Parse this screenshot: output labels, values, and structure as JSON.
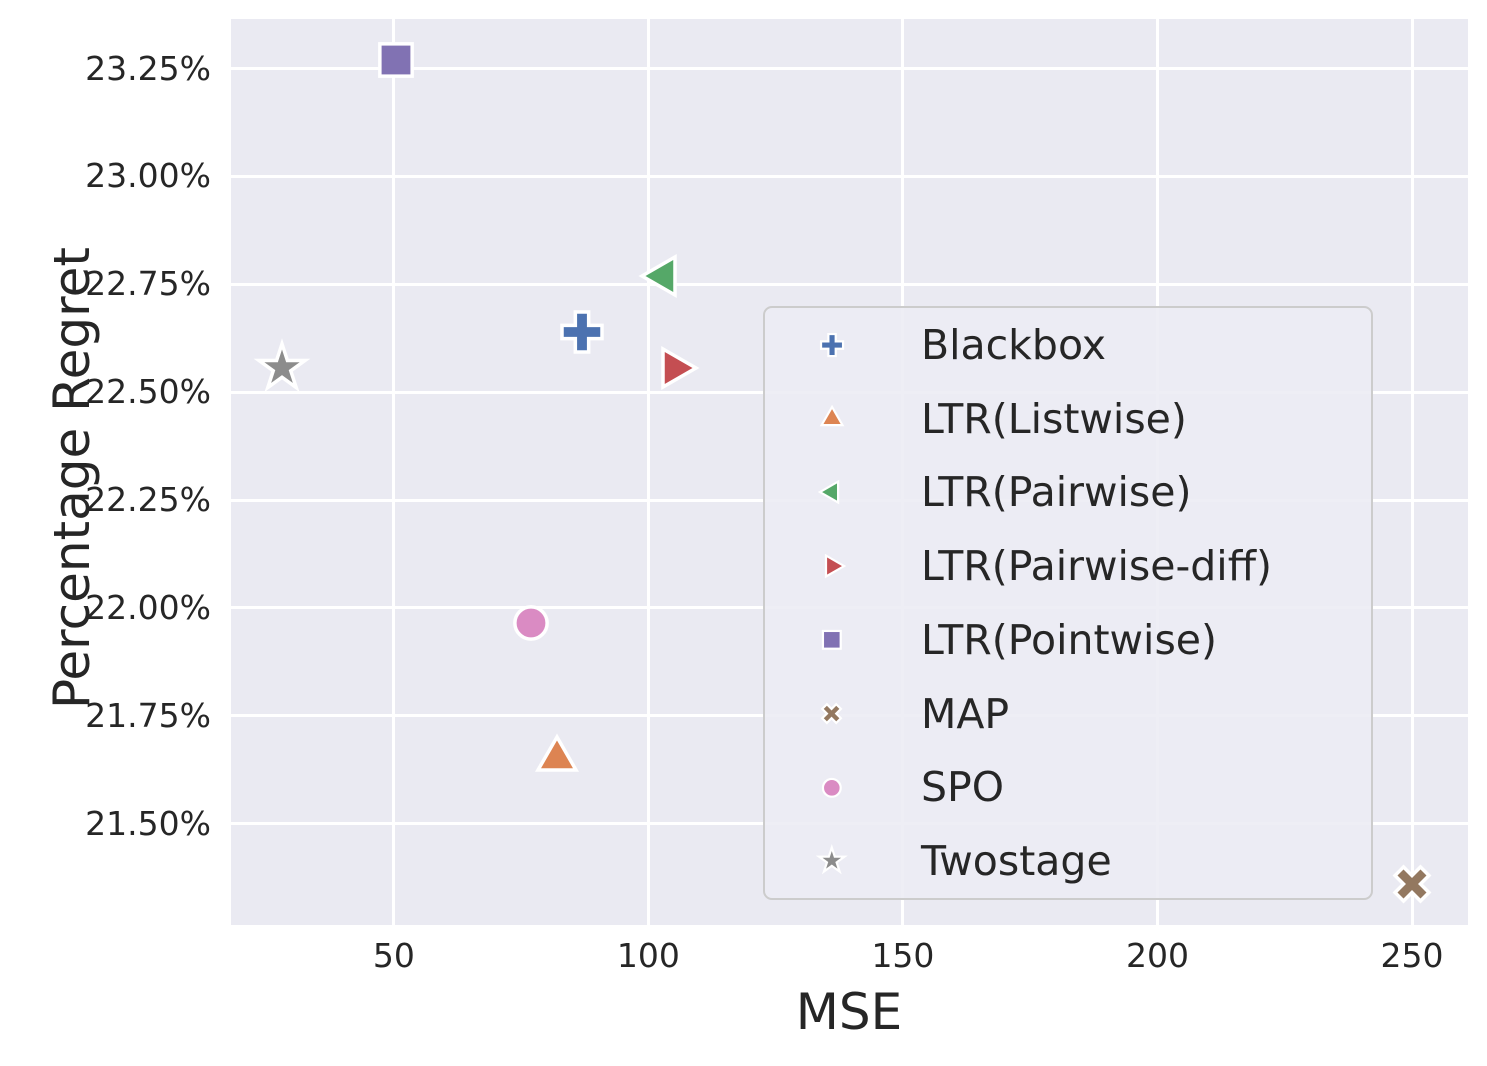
{
  "chart_data": {
    "type": "scatter",
    "title": "",
    "xlabel": "MSE",
    "ylabel": "Percentage Regret",
    "grid": true,
    "background_color": "#EAEAF2",
    "gridline_color": "#FFFFFF",
    "text_color": "#262626",
    "xlim": [
      18,
      261
    ],
    "ylim": [
      21.265,
      23.365
    ],
    "x_ticks": [
      50,
      100,
      150,
      200,
      250
    ],
    "x_tick_labels": [
      "50",
      "100",
      "150",
      "200",
      "250"
    ],
    "y_ticks": [
      21.5,
      21.75,
      22.0,
      22.25,
      22.5,
      22.75,
      23.0,
      23.25
    ],
    "y_tick_labels": [
      "21.50%",
      "21.75%",
      "22.00%",
      "22.25%",
      "22.50%",
      "22.75%",
      "23.00%",
      "23.25%"
    ],
    "legend_position": "center-right",
    "series": [
      {
        "name": "Blackbox",
        "marker": "plus",
        "color": "#4C72B0",
        "points": [
          {
            "x": 87,
            "y": 22.64
          }
        ]
      },
      {
        "name": "LTR(Listwise)",
        "marker": "triangle-up",
        "color": "#DD8452",
        "points": [
          {
            "x": 82,
            "y": 21.65
          }
        ]
      },
      {
        "name": "LTR(Pairwise)",
        "marker": "triangle-left",
        "color": "#55A868",
        "points": [
          {
            "x": 103,
            "y": 22.77
          }
        ]
      },
      {
        "name": "LTR(Pairwise-diff)",
        "marker": "triangle-right",
        "color": "#C44E52",
        "points": [
          {
            "x": 105,
            "y": 22.555
          }
        ]
      },
      {
        "name": "LTR(Pointwise)",
        "marker": "square",
        "color": "#8172B3",
        "points": [
          {
            "x": 50.5,
            "y": 23.27
          }
        ]
      },
      {
        "name": "MAP",
        "marker": "x",
        "color": "#937860",
        "points": [
          {
            "x": 250,
            "y": 21.36
          }
        ]
      },
      {
        "name": "SPO",
        "marker": "circle",
        "color": "#DA8BC3",
        "points": [
          {
            "x": 77,
            "y": 21.965
          }
        ]
      },
      {
        "name": "Twostage",
        "marker": "star",
        "color": "#8C8C8C",
        "points": [
          {
            "x": 28,
            "y": 22.555
          }
        ]
      }
    ]
  }
}
